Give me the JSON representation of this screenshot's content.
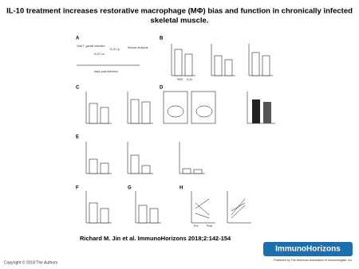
{
  "header": {
    "title_line1": "IL-10 treatment increases restorative macrophage (MΦ) bias and function in chronically infected",
    "title_line2": "skeletal muscle."
  },
  "figure": {
    "panels": [
      {
        "label": "A"
      },
      {
        "label": "B"
      },
      {
        "label": "C"
      },
      {
        "label": "D"
      },
      {
        "label": "E"
      },
      {
        "label": "F"
      },
      {
        "label": "G"
      },
      {
        "label": "H"
      }
    ],
    "timeline": {
      "infection": "Oral T. gondii infection",
      "im": "IL10 i.m.",
      "ip": "IL10 i.p.",
      "analysis": "Muscle analysis",
      "axis": "days post-infection"
    },
    "groups": [
      "PBS",
      "IL10"
    ],
    "h_axis": [
      "Pre",
      "Post"
    ]
  },
  "footer": {
    "citation": "Richard M. Jin et al. ImmunoHorizons 2018;2:142-154",
    "copyright": "Copyright © 2018 The Authors",
    "logo": "ImmunoHorizons",
    "publisher": "Published by The American Association of Immunologists, Inc."
  }
}
